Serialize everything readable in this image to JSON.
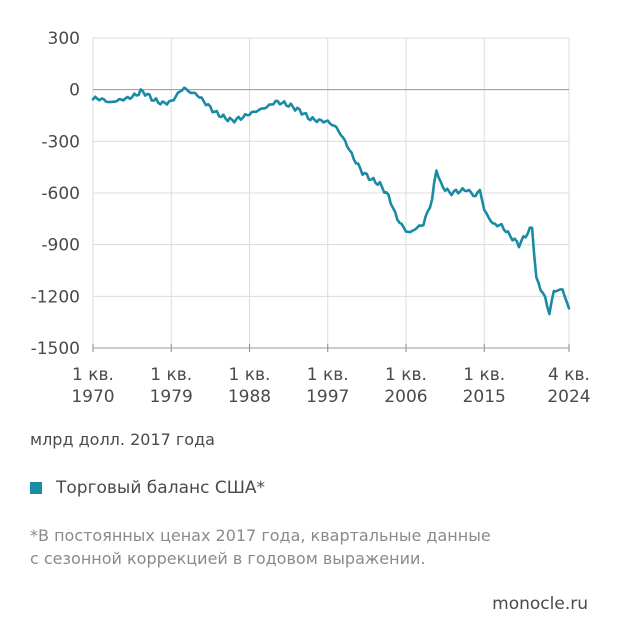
{
  "colors": {
    "series": "#1a8aa5",
    "grid": "#dcdcdc",
    "text": "#4a4a4a",
    "note": "#8a8a8a"
  },
  "chart_data": {
    "type": "line",
    "title": "",
    "xlabel": "",
    "ylabel": "млрд долл. 2017 года",
    "ylim": [
      -1500,
      300
    ],
    "yticks": [
      300,
      0,
      -300,
      -600,
      -900,
      -1200,
      -1500
    ],
    "ytick_labels": [
      "300",
      "0",
      "-300",
      "-600",
      "-900",
      "-1200",
      "-1500"
    ],
    "xlim": [
      1970.0,
      2024.75
    ],
    "xticks": [
      {
        "value": 1970.0,
        "line1": "1 кв.",
        "line2": "1970"
      },
      {
        "value": 1979.0,
        "line1": "1 кв.",
        "line2": "1979"
      },
      {
        "value": 1988.0,
        "line1": "1 кв.",
        "line2": "1988"
      },
      {
        "value": 1997.0,
        "line1": "1 кв.",
        "line2": "1997"
      },
      {
        "value": 2006.0,
        "line1": "1 кв.",
        "line2": "2006"
      },
      {
        "value": 2015.0,
        "line1": "1 кв.",
        "line2": "2015"
      },
      {
        "value": 2024.75,
        "line1": "4 кв.",
        "line2": "2024"
      }
    ],
    "series": [
      {
        "name": "Торговый баланс США*",
        "x": [
          1970.0,
          1971.0,
          1972.0,
          1973.0,
          1974.0,
          1975.0,
          1975.5,
          1976.0,
          1977.0,
          1978.0,
          1979.0,
          1980.0,
          1980.5,
          1981.0,
          1982.0,
          1983.0,
          1984.0,
          1985.0,
          1986.0,
          1987.0,
          1988.0,
          1989.0,
          1990.0,
          1991.0,
          1992.0,
          1993.0,
          1994.0,
          1995.0,
          1996.0,
          1997.0,
          1998.0,
          1999.0,
          2000.0,
          2001.0,
          2002.0,
          2003.0,
          2004.0,
          2005.0,
          2006.0,
          2006.5,
          2007.0,
          2008.0,
          2009.0,
          2009.5,
          2010.0,
          2011.0,
          2012.0,
          2013.0,
          2014.0,
          2014.5,
          2015.0,
          2016.0,
          2017.0,
          2018.0,
          2019.0,
          2020.0,
          2020.5,
          2021.0,
          2022.0,
          2022.5,
          2023.0,
          2024.0,
          2024.75
        ],
        "values": [
          -50,
          -55,
          -75,
          -60,
          -50,
          -30,
          -10,
          -20,
          -60,
          -80,
          -70,
          -10,
          10,
          -10,
          -30,
          -80,
          -130,
          -160,
          -180,
          -165,
          -140,
          -120,
          -100,
          -70,
          -80,
          -100,
          -130,
          -170,
          -180,
          -185,
          -220,
          -300,
          -400,
          -480,
          -520,
          -550,
          -620,
          -750,
          -820,
          -830,
          -810,
          -780,
          -640,
          -460,
          -550,
          -600,
          -590,
          -580,
          -620,
          -580,
          -700,
          -780,
          -790,
          -850,
          -900,
          -830,
          -800,
          -1100,
          -1210,
          -1300,
          -1170,
          -1160,
          -1270
        ]
      }
    ]
  },
  "unit_label": "млрд долл. 2017 года",
  "legend": {
    "label": "Торговый баланс США*"
  },
  "note": {
    "line1": "*В постоянных ценах 2017 года, квартальные данные",
    "line2": "с сезонной коррекцией в годовом выражении."
  },
  "brand": "monocle.ru"
}
